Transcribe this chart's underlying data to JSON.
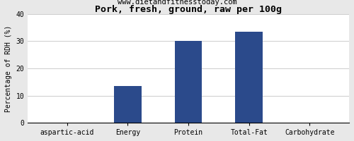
{
  "title": "Pork, fresh, ground, raw per 100g",
  "subtitle": "www.dietandfitnesstoday.com",
  "categories": [
    "aspartic-acid",
    "Energy",
    "Protein",
    "Total-Fat",
    "Carbohydrate"
  ],
  "values": [
    0,
    13.5,
    30.0,
    33.5,
    0
  ],
  "bar_color": "#2b4a8b",
  "ylabel": "Percentage of RDH (%)",
  "ylim": [
    0,
    40
  ],
  "yticks": [
    0,
    10,
    20,
    30,
    40
  ],
  "background_color": "#e8e8e8",
  "plot_bg_color": "#ffffff",
  "title_fontsize": 9.5,
  "subtitle_fontsize": 7.5,
  "ylabel_fontsize": 7,
  "tick_fontsize": 7,
  "bar_width": 0.45
}
